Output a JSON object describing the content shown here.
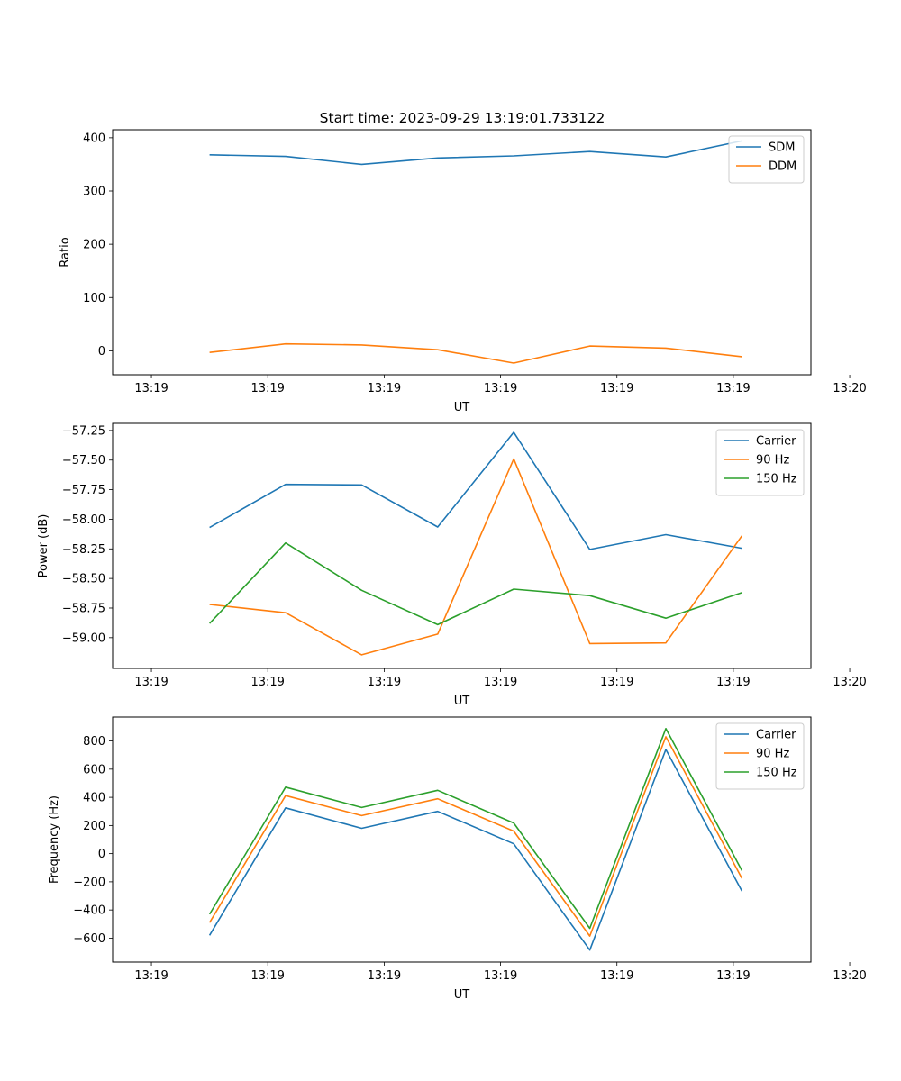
{
  "figure": {
    "title": "Start time: 2023-09-29 13:19:01.733122"
  },
  "chart_data": [
    {
      "type": "line",
      "title": "Start time: 2023-09-29 13:19:01.733122",
      "xlabel": "UT",
      "ylabel": "Ratio",
      "xlim": [
        -0.5,
        8.5
      ],
      "ylim": [
        -45,
        415
      ],
      "x_ticks": [
        0,
        1.5,
        3,
        4.5,
        6,
        7.5,
        9
      ],
      "x_tick_labels": [
        "13:19",
        "13:19",
        "13:19",
        "13:19",
        "13:19",
        "13:19",
        "13:20"
      ],
      "y_ticks": [
        0,
        100,
        200,
        300,
        400
      ],
      "y_tick_labels": [
        "0",
        "100",
        "200",
        "300",
        "400"
      ],
      "legend_position": "top-right",
      "x": [
        0.75,
        1.73,
        2.71,
        3.69,
        4.67,
        5.65,
        6.63,
        7.61
      ],
      "series": [
        {
          "name": "SDM",
          "color": "#1f77b4",
          "values": [
            368,
            365,
            350,
            362,
            366,
            374,
            364,
            394
          ]
        },
        {
          "name": "DDM",
          "color": "#ff7f0e",
          "values": [
            -3,
            13,
            11,
            2,
            -23,
            9,
            5,
            -11
          ]
        }
      ]
    },
    {
      "type": "line",
      "xlabel": "UT",
      "ylabel": "Power (dB)",
      "xlim": [
        -0.5,
        8.5
      ],
      "ylim": [
        -59.26,
        -57.19
      ],
      "x_ticks": [
        0,
        1.5,
        3,
        4.5,
        6,
        7.5,
        9
      ],
      "x_tick_labels": [
        "13:19",
        "13:19",
        "13:19",
        "13:19",
        "13:19",
        "13:19",
        "13:20"
      ],
      "y_ticks": [
        -59.0,
        -58.75,
        -58.5,
        -58.25,
        -58.0,
        -57.75,
        -57.5,
        -57.25
      ],
      "y_tick_labels": [
        "−59.00",
        "−58.75",
        "−58.50",
        "−58.25",
        "−58.00",
        "−57.75",
        "−57.50",
        "−57.25"
      ],
      "legend_position": "top-right",
      "x": [
        0.75,
        1.73,
        2.71,
        3.69,
        4.67,
        5.65,
        6.63,
        7.61
      ],
      "series": [
        {
          "name": "Carrier",
          "color": "#1f77b4",
          "values": [
            -58.07,
            -57.705,
            -57.71,
            -58.065,
            -57.265,
            -58.255,
            -58.13,
            -58.245
          ]
        },
        {
          "name": "90 Hz",
          "color": "#ff7f0e",
          "values": [
            -58.72,
            -58.79,
            -59.145,
            -58.97,
            -57.49,
            -59.05,
            -59.045,
            -58.14
          ]
        },
        {
          "name": "150 Hz",
          "color": "#2ca02c",
          "values": [
            -58.88,
            -58.2,
            -58.6,
            -58.89,
            -58.59,
            -58.645,
            -58.835,
            -58.62
          ]
        }
      ]
    },
    {
      "type": "line",
      "xlabel": "UT",
      "ylabel": "Frequency (Hz)",
      "xlim": [
        -0.5,
        8.5
      ],
      "ylim": [
        -770,
        970
      ],
      "x_ticks": [
        0,
        1.5,
        3,
        4.5,
        6,
        7.5,
        9
      ],
      "x_tick_labels": [
        "13:19",
        "13:19",
        "13:19",
        "13:19",
        "13:19",
        "13:19",
        "13:20"
      ],
      "y_ticks": [
        -600,
        -400,
        -200,
        0,
        200,
        400,
        600,
        800
      ],
      "y_tick_labels": [
        "−600",
        "−400",
        "−200",
        "0",
        "200",
        "400",
        "600",
        "800"
      ],
      "legend_position": "top-right",
      "x": [
        0.75,
        1.73,
        2.71,
        3.69,
        4.67,
        5.65,
        6.63,
        7.61
      ],
      "series": [
        {
          "name": "Carrier",
          "color": "#1f77b4",
          "values": [
            -580,
            325,
            180,
            300,
            70,
            -685,
            740,
            -265
          ]
        },
        {
          "name": "90 Hz",
          "color": "#ff7f0e",
          "values": [
            -490,
            412,
            270,
            390,
            160,
            -585,
            830,
            -175
          ]
        },
        {
          "name": "150 Hz",
          "color": "#2ca02c",
          "values": [
            -430,
            472,
            328,
            450,
            218,
            -530,
            888,
            -120
          ]
        }
      ]
    }
  ]
}
